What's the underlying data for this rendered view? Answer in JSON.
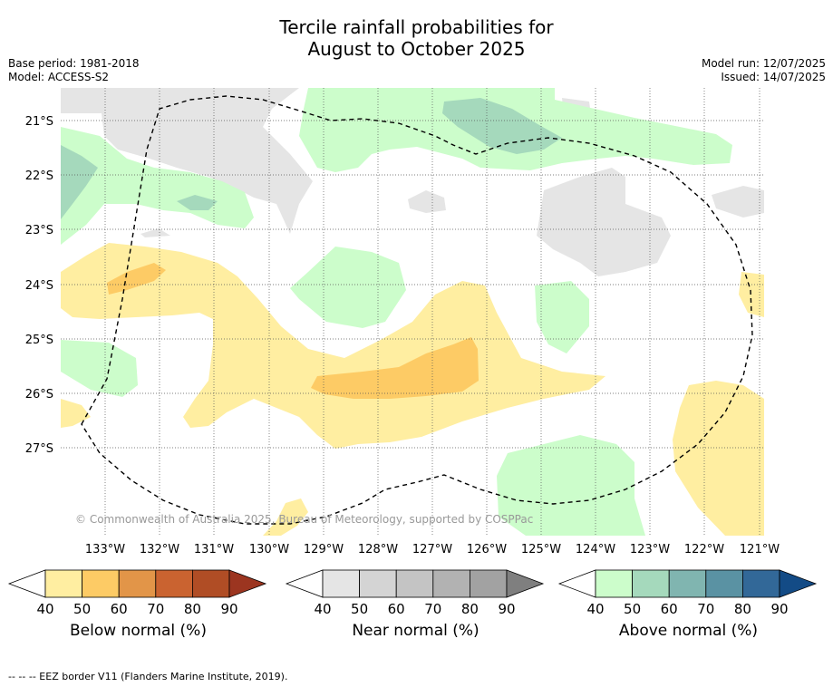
{
  "title_line1": "Tercile rainfall probabilities for",
  "title_line2": "August to October 2025",
  "meta_left": [
    "Base period: 1981-2018",
    "Model: ACCESS-S2"
  ],
  "meta_right": [
    "Model run: 12/07/2025",
    "Issued: 14/07/2025"
  ],
  "map": {
    "lat_labels": [
      "21°S",
      "22°S",
      "23°S",
      "24°S",
      "25°S",
      "26°S",
      "27°S"
    ],
    "lon_labels": [
      "133°W",
      "132°W",
      "131°W",
      "130°W",
      "129°W",
      "128°W",
      "127°W",
      "126°W",
      "125°W",
      "124°W",
      "123°W",
      "122°W",
      "121°W"
    ],
    "copyright": "© Commonwealth of Australia 2025, Bureau of Meteorology, supported by COSPPac"
  },
  "colorbars": [
    {
      "label": "Below normal (%)",
      "ticks": [
        "40",
        "50",
        "60",
        "70",
        "80",
        "90"
      ],
      "colors": [
        "#ffffff",
        "#ffeea1",
        "#fdcb65",
        "#e29548",
        "#ca6330",
        "#b04d25",
        "#9c3520"
      ]
    },
    {
      "label": "Near normal (%)",
      "ticks": [
        "40",
        "50",
        "60",
        "70",
        "80",
        "90"
      ],
      "colors": [
        "#ffffff",
        "#e5e5e5",
        "#d4d4d4",
        "#c4c4c4",
        "#b2b2b2",
        "#a2a2a2",
        "#7f7f7f"
      ]
    },
    {
      "label": "Above normal (%)",
      "ticks": [
        "40",
        "50",
        "60",
        "70",
        "80",
        "90"
      ],
      "colors": [
        "#ffffff",
        "#ccfdcb",
        "#a5d9bc",
        "#80b5b0",
        "#5a92a3",
        "#326898",
        "#134b86"
      ]
    }
  ],
  "footer": "--  --  -- EEZ border V11 (Flanders Marine Institute, 2019)."
}
